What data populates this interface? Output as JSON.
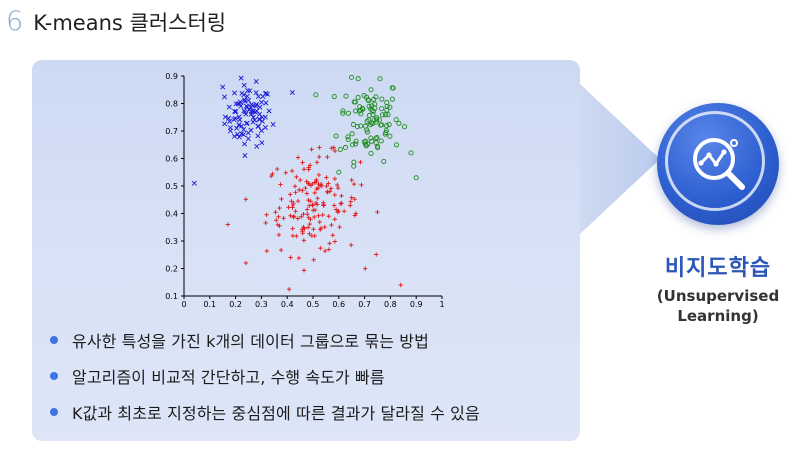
{
  "heading": {
    "number": "6",
    "title": "K-means 클러스터링"
  },
  "badge": {
    "title": "비지도학습",
    "subtitle_line1": "(Unsupervised",
    "subtitle_line2": "Learning)",
    "icon": "analytics-magnifier-icon"
  },
  "bullets": [
    "유사한 특성을 가진 k개의 데이터 그룹으로 묶는 방법",
    "알고리즘이 비교적 간단하고, 수행 속도가 빠름",
    "K값과 최초로 지정하는 중심점에 따른 결과가 달라질 수 있음"
  ],
  "colors": {
    "accent": "#2b56b8",
    "panel": "#d4def4",
    "bullet": "#3d74de"
  },
  "chart_data": {
    "type": "scatter",
    "title": "",
    "xlabel": "",
    "ylabel": "",
    "xlim": [
      0,
      1
    ],
    "ylim": [
      0.1,
      0.9
    ],
    "x_ticks": [
      "0",
      "0.1",
      "0.2",
      "0.3",
      "0.4",
      "0.5",
      "0.6",
      "0.7",
      "0.8",
      "0.9",
      "1"
    ],
    "y_ticks": [
      "0.1",
      "0.2",
      "0.3",
      "0.4",
      "0.5",
      "0.6",
      "0.7",
      "0.8",
      "0.9"
    ],
    "grid": false,
    "series": [
      {
        "marker": "x",
        "color": "#1a1ad6",
        "center": [
          0.25,
          0.755
        ],
        "spread": [
          0.045,
          0.055
        ],
        "count": 90,
        "outliers": [
          [
            0.04,
            0.51
          ],
          [
            0.15,
            0.86
          ],
          [
            0.28,
            0.88
          ],
          [
            0.42,
            0.84
          ],
          [
            0.18,
            0.7
          ]
        ]
      },
      {
        "marker": "o",
        "color": "#1e8c1e",
        "center": [
          0.72,
          0.745
        ],
        "spread": [
          0.06,
          0.075
        ],
        "count": 100,
        "outliers": [
          [
            0.76,
            0.89
          ],
          [
            0.9,
            0.53
          ],
          [
            0.6,
            0.55
          ],
          [
            0.88,
            0.62
          ]
        ]
      },
      {
        "marker": "+",
        "color": "#e01818",
        "center": [
          0.5,
          0.43
        ],
        "spread": [
          0.09,
          0.09
        ],
        "count": 160,
        "outliers": [
          [
            0.84,
            0.14
          ],
          [
            0.17,
            0.36
          ],
          [
            0.24,
            0.22
          ]
        ]
      }
    ]
  }
}
